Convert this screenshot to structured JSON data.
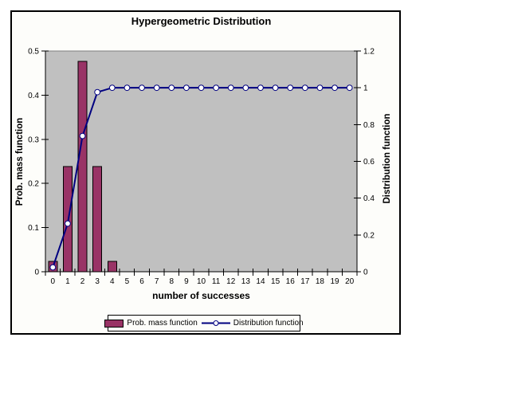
{
  "chart_data": {
    "type": "bar",
    "title": "Hypergeometric Distribution",
    "xlabel": "number of successes",
    "ylabel_left": "Prob. mass function",
    "ylabel_right": "Distribution function",
    "categories": [
      "0",
      "1",
      "2",
      "3",
      "4",
      "5",
      "6",
      "7",
      "8",
      "9",
      "10",
      "11",
      "12",
      "13",
      "14",
      "15",
      "16",
      "17",
      "18",
      "19",
      "20"
    ],
    "series": [
      {
        "name": "Prob. mass function",
        "type": "bar",
        "axis": "left",
        "color": "#993366",
        "border_color": "#000000",
        "values": [
          0.0238,
          0.2381,
          0.4762,
          0.2381,
          0.0238,
          0,
          0,
          0,
          0,
          0,
          0,
          0,
          0,
          0,
          0,
          0,
          0,
          0,
          0,
          0,
          0
        ]
      },
      {
        "name": "Distribution function",
        "type": "line",
        "axis": "right",
        "color": "#000080",
        "marker": "circle",
        "marker_fill": "#ffffff",
        "values": [
          0.0238,
          0.2619,
          0.7381,
          0.9762,
          1,
          1,
          1,
          1,
          1,
          1,
          1,
          1,
          1,
          1,
          1,
          1,
          1,
          1,
          1,
          1,
          1
        ]
      }
    ],
    "y_left": {
      "min": 0,
      "max": 0.5,
      "ticks": [
        "0",
        "0.1",
        "0.2",
        "0.3",
        "0.4",
        "0.5"
      ]
    },
    "y_right": {
      "min": 0,
      "max": 1.2,
      "ticks": [
        "0",
        "0.2",
        "0.4",
        "0.6",
        "0.8",
        "1",
        "1.2"
      ]
    },
    "plot_bg": "#c0c0c0",
    "grid": false,
    "legend_position": "bottom"
  }
}
